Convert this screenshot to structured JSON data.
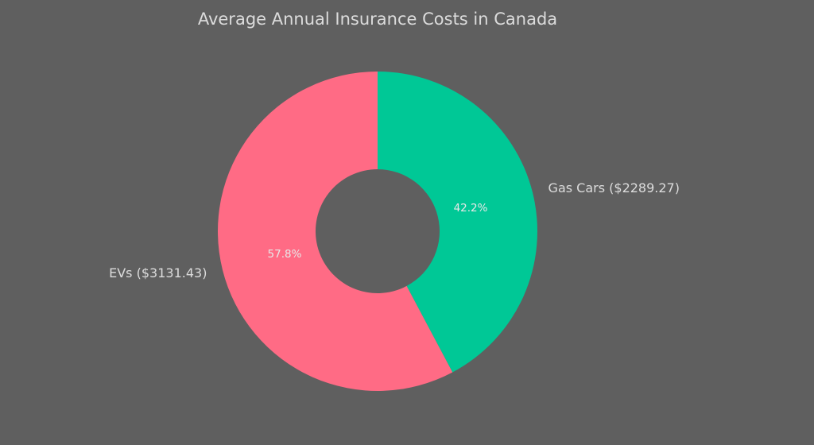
{
  "chart_data": {
    "type": "pie",
    "donut": true,
    "title": "Average Annual Insurance Costs in Canada",
    "start": "top",
    "direction": "clockwise",
    "slices": [
      {
        "label": "Gas Cars ($2289.27)",
        "value": 2289.27,
        "pct_label": "42.2%",
        "color": "#00c896"
      },
      {
        "label": "EVs ($3131.43)",
        "value": 3131.43,
        "pct_label": "57.8%",
        "color": "#ff6b85"
      }
    ],
    "background": "#5f5f5f"
  }
}
